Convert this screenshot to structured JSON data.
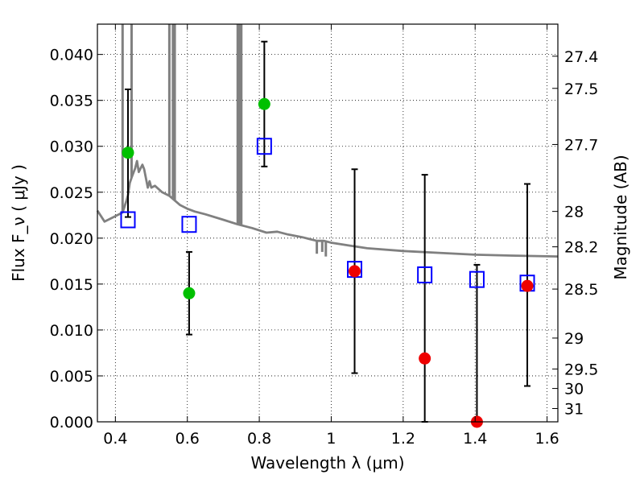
{
  "chart_data": {
    "type": "scatter",
    "xlabel": "Wavelength  λ (μm)",
    "ylabel": "Flux  F_ν  ( μJy )",
    "y2label": "Magnitude (AB)",
    "xlim": [
      0.35,
      1.63
    ],
    "ylim": [
      0.0,
      0.0433
    ],
    "grid": true,
    "x_ticks": [
      0.4,
      0.6,
      0.8,
      1.0,
      1.2,
      1.4,
      1.6
    ],
    "x_tick_labels": [
      "0.4",
      "0.6",
      "0.8",
      "1",
      "1.2",
      "1.4",
      "1.6"
    ],
    "y_ticks": [
      0.0,
      0.005,
      0.01,
      0.015,
      0.02,
      0.025,
      0.03,
      0.035,
      0.04
    ],
    "y_tick_labels": [
      "0.000",
      "0.005",
      "0.010",
      "0.015",
      "0.020",
      "0.025",
      "0.030",
      "0.035",
      "0.040"
    ],
    "mag_ticks": [
      27.4,
      27.5,
      27.7,
      28,
      28.2,
      28.5,
      29,
      29.5,
      30,
      31
    ],
    "mag_tick_labels": [
      "27.4",
      "27.5",
      "27.7",
      "28",
      "28.2",
      "28.5",
      "29",
      "29.5",
      "30",
      "31"
    ],
    "colors": {
      "template": "#808080",
      "model": "#0000ff",
      "detection": "#00c000",
      "non_detection": "#ee0000",
      "errorbar": "#000000"
    },
    "series": [
      {
        "type": "line",
        "points": [
          [
            0.35,
            0.023
          ],
          [
            0.37,
            0.0218
          ],
          [
            0.39,
            0.0222
          ],
          [
            0.41,
            0.0226
          ],
          [
            0.42,
            0.0228
          ],
          [
            0.43,
            0.024
          ],
          [
            0.435,
            0.0247
          ],
          [
            0.44,
            0.026
          ],
          [
            0.445,
            0.0266
          ],
          [
            0.45,
            0.0271
          ],
          [
            0.455,
            0.0276
          ],
          [
            0.46,
            0.0284
          ],
          [
            0.465,
            0.0272
          ],
          [
            0.47,
            0.0276
          ],
          [
            0.475,
            0.028
          ],
          [
            0.48,
            0.0275
          ],
          [
            0.49,
            0.0255
          ],
          [
            0.495,
            0.0262
          ],
          [
            0.5,
            0.0255
          ],
          [
            0.51,
            0.0257
          ],
          [
            0.53,
            0.025
          ],
          [
            0.55,
            0.0246
          ],
          [
            0.58,
            0.0236
          ],
          [
            0.6,
            0.0232
          ],
          [
            0.62,
            0.0229
          ],
          [
            0.65,
            0.0226
          ],
          [
            0.7,
            0.022
          ],
          [
            0.74,
            0.0215
          ],
          [
            0.78,
            0.0211
          ],
          [
            0.82,
            0.0206
          ],
          [
            0.85,
            0.0207
          ],
          [
            0.88,
            0.0204
          ],
          [
            0.92,
            0.0201
          ],
          [
            0.94,
            0.0199
          ],
          [
            0.96,
            0.0197
          ],
          [
            0.98,
            0.0197
          ],
          [
            1.0,
            0.0195
          ],
          [
            1.05,
            0.0192
          ],
          [
            1.1,
            0.0189
          ],
          [
            1.2,
            0.0186
          ],
          [
            1.3,
            0.0184
          ],
          [
            1.4,
            0.0182
          ],
          [
            1.5,
            0.0181
          ],
          [
            1.63,
            0.018
          ]
        ],
        "spikes": [
          [
            0.42,
            0.0433
          ],
          [
            0.445,
            0.0433
          ],
          [
            0.55,
            0.0433
          ],
          [
            0.56,
            0.0433
          ],
          [
            0.565,
            0.0433
          ],
          [
            0.74,
            0.0433
          ],
          [
            0.745,
            0.0433
          ],
          [
            0.75,
            0.0433
          ],
          [
            0.96,
            0.0183
          ],
          [
            0.975,
            0.0185
          ],
          [
            0.985,
            0.018
          ]
        ]
      },
      {
        "type": "model_points",
        "x": [
          0.435,
          0.605,
          0.814,
          1.065,
          1.26,
          1.405,
          1.545
        ],
        "y": [
          0.022,
          0.0215,
          0.03,
          0.0166,
          0.016,
          0.0155,
          0.0151
        ]
      },
      {
        "type": "detections",
        "x": [
          0.435,
          0.605,
          0.814
        ],
        "y": [
          0.0293,
          0.014,
          0.0346
        ],
        "err_low": [
          0.0223,
          0.0095,
          0.0278
        ],
        "err_high": [
          0.0362,
          0.0185,
          0.0414
        ]
      },
      {
        "type": "non_detections",
        "x": [
          1.065,
          1.26,
          1.405,
          1.545
        ],
        "y": [
          0.0164,
          0.0069,
          0.0,
          0.0148
        ],
        "err_low": [
          0.0053,
          0.0,
          0.0,
          0.0039
        ],
        "err_high": [
          0.0275,
          0.0269,
          0.0171,
          0.0259
        ]
      }
    ]
  }
}
